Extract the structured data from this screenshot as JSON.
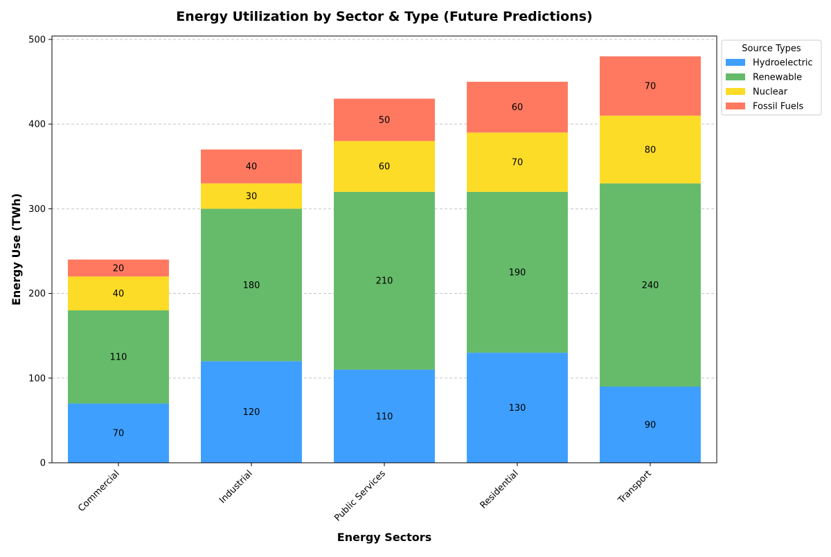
{
  "chart_data": {
    "type": "bar",
    "stacked": true,
    "title": "Energy Utilization by Sector & Type (Future Predictions)",
    "xlabel": "Energy Sectors",
    "ylabel": "Energy Use (TWh)",
    "categories": [
      "Commercial",
      "Industrial",
      "Public Services",
      "Residential",
      "Transport"
    ],
    "series": [
      {
        "name": "Hydroelectric",
        "color": "#3f9fff",
        "values": [
          70,
          120,
          110,
          130,
          90
        ]
      },
      {
        "name": "Renewable",
        "color": "#66bb6a",
        "values": [
          110,
          180,
          210,
          190,
          240
        ]
      },
      {
        "name": "Nuclear",
        "color": "#fddc27",
        "values": [
          40,
          30,
          60,
          70,
          80
        ]
      },
      {
        "name": "Fossil Fuels",
        "color": "#ff7961",
        "values": [
          20,
          40,
          50,
          60,
          70
        ]
      }
    ],
    "ylim": [
      0,
      504
    ],
    "yticks": [
      0,
      100,
      200,
      300,
      400,
      500
    ],
    "grid": "y-dashed",
    "legend_title": "Source Types",
    "legend_position": "outside-top-right"
  }
}
